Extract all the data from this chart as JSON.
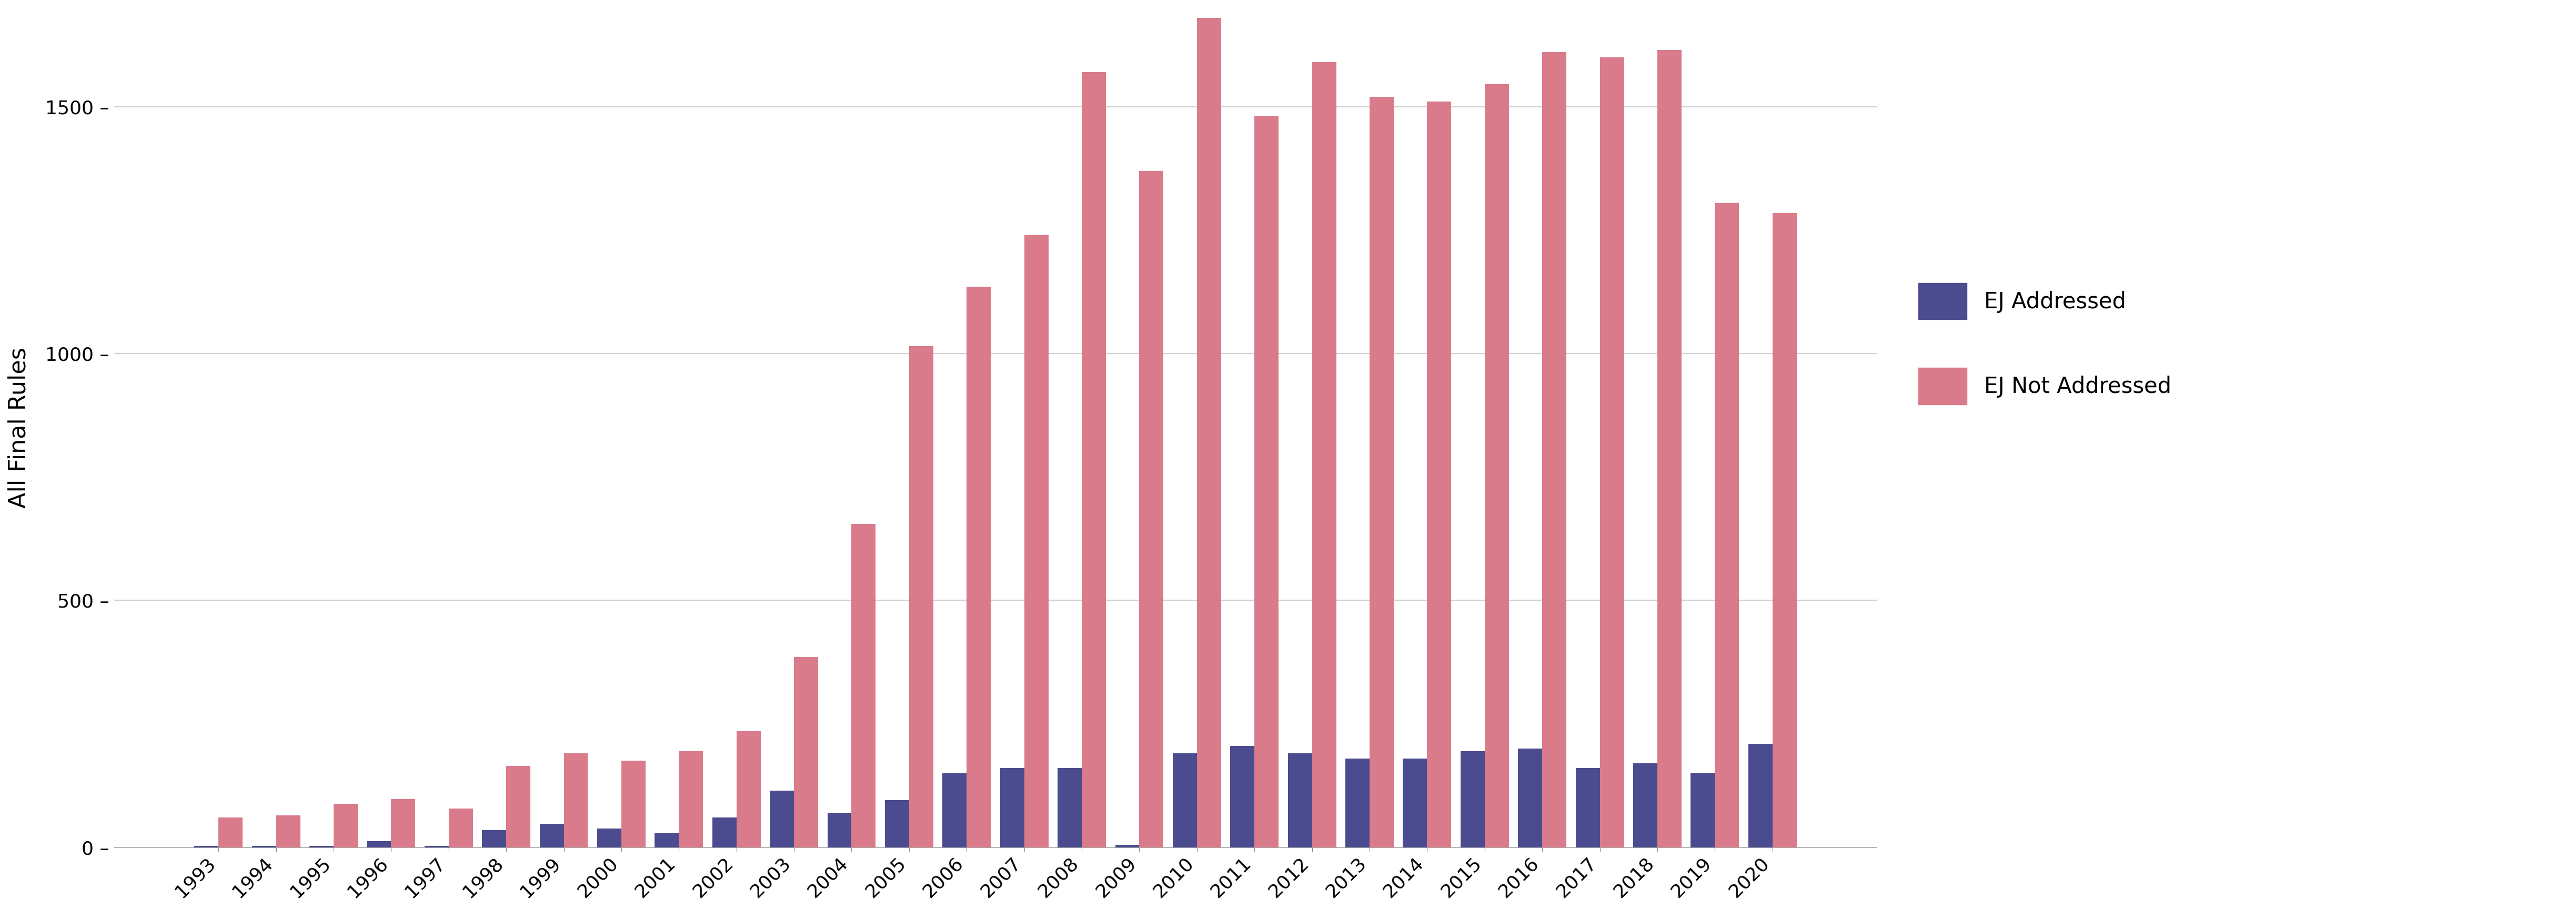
{
  "years": [
    1993,
    1994,
    1995,
    1996,
    1997,
    1998,
    1999,
    2000,
    2001,
    2002,
    2003,
    2004,
    2005,
    2006,
    2007,
    2008,
    2009,
    2010,
    2011,
    2012,
    2013,
    2014,
    2015,
    2016,
    2017,
    2018,
    2019,
    2020
  ],
  "ej_addressed": [
    3,
    3,
    3,
    12,
    3,
    35,
    48,
    38,
    28,
    60,
    115,
    70,
    95,
    150,
    160,
    160,
    5,
    190,
    205,
    190,
    180,
    180,
    195,
    200,
    160,
    170,
    150,
    210
  ],
  "ej_not_addressed": [
    60,
    65,
    88,
    98,
    78,
    165,
    190,
    175,
    195,
    235,
    385,
    655,
    1015,
    1135,
    1240,
    1570,
    1370,
    1680,
    1480,
    1590,
    1520,
    1510,
    1545,
    1610,
    1600,
    1615,
    1305,
    1285
  ],
  "ej_addressed_color": "#4b4b8f",
  "ej_not_addressed_color": "#d97b8a",
  "background_color": "#ffffff",
  "grid_color": "#d0d0d0",
  "ylabel": "All Final Rules",
  "ylim": [
    0,
    1700
  ],
  "yticks": [
    0,
    500,
    1000,
    1500
  ],
  "ytick_labels": [
    "0 –",
    "500 –",
    "1000 –",
    "1500 –"
  ],
  "legend_ej_addressed": "EJ Addressed",
  "legend_ej_not_addressed": "EJ Not Addressed",
  "ylabel_fontsize": 32,
  "tick_fontsize": 26,
  "legend_fontsize": 30,
  "bar_width": 0.42
}
